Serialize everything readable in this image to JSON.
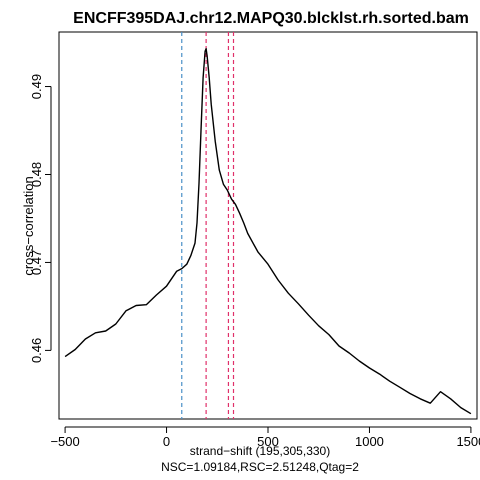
{
  "chart_data": {
    "type": "line",
    "title": "ENCFF395DAJ.chr12.MAPQ30.blcklst.rh.sorted.bam",
    "xlabel": "strand−shift (195,305,330)",
    "xlabel2": "NSC=1.09184,RSC=2.51248,Qtag=2",
    "ylabel": "cross−correlation",
    "xlim": [
      -530,
      1530
    ],
    "ylim": [
      0.4522,
      0.4962
    ],
    "xticks": [
      -500,
      0,
      500,
      1000,
      1500
    ],
    "xtick_labels": [
      "−500",
      "0",
      "500",
      "1000",
      "1500"
    ],
    "yticks": [
      0.46,
      0.47,
      0.48,
      0.49
    ],
    "ytick_labels": [
      "0.46",
      "0.47",
      "0.48",
      "0.49"
    ],
    "vlines": [
      {
        "x": 75,
        "color": "#4a90c8",
        "style": "dashed"
      },
      {
        "x": 195,
        "color": "#e0306a",
        "style": "dashed"
      },
      {
        "x": 305,
        "color": "#e0306a",
        "style": "dashed"
      },
      {
        "x": 330,
        "color": "#e0306a",
        "style": "dashed"
      }
    ],
    "grid": false,
    "series": [
      {
        "color": "#000000",
        "x": [
          -500,
          -450,
          -400,
          -350,
          -300,
          -250,
          -200,
          -150,
          -100,
          -50,
          0,
          50,
          75,
          100,
          120,
          140,
          150,
          160,
          170,
          180,
          190,
          195,
          200,
          210,
          220,
          240,
          260,
          280,
          300,
          320,
          340,
          360,
          380,
          400,
          450,
          500,
          550,
          600,
          650,
          700,
          750,
          800,
          850,
          900,
          950,
          1000,
          1050,
          1100,
          1150,
          1200,
          1250,
          1300,
          1350,
          1400,
          1450,
          1500
        ],
        "y": [
          0.4593,
          0.4601,
          0.4613,
          0.462,
          0.4622,
          0.463,
          0.4645,
          0.4651,
          0.4652,
          0.4663,
          0.4673,
          0.469,
          0.4693,
          0.4698,
          0.4708,
          0.4722,
          0.4745,
          0.479,
          0.485,
          0.491,
          0.494,
          0.4943,
          0.4935,
          0.491,
          0.488,
          0.4838,
          0.4805,
          0.4789,
          0.4782,
          0.4772,
          0.4766,
          0.4756,
          0.4745,
          0.4733,
          0.4712,
          0.4698,
          0.468,
          0.4665,
          0.4653,
          0.464,
          0.4628,
          0.4618,
          0.4605,
          0.4597,
          0.4588,
          0.458,
          0.4573,
          0.4565,
          0.4558,
          0.4551,
          0.4545,
          0.454,
          0.4553,
          0.4545,
          0.4535,
          0.4528
        ]
      }
    ]
  }
}
